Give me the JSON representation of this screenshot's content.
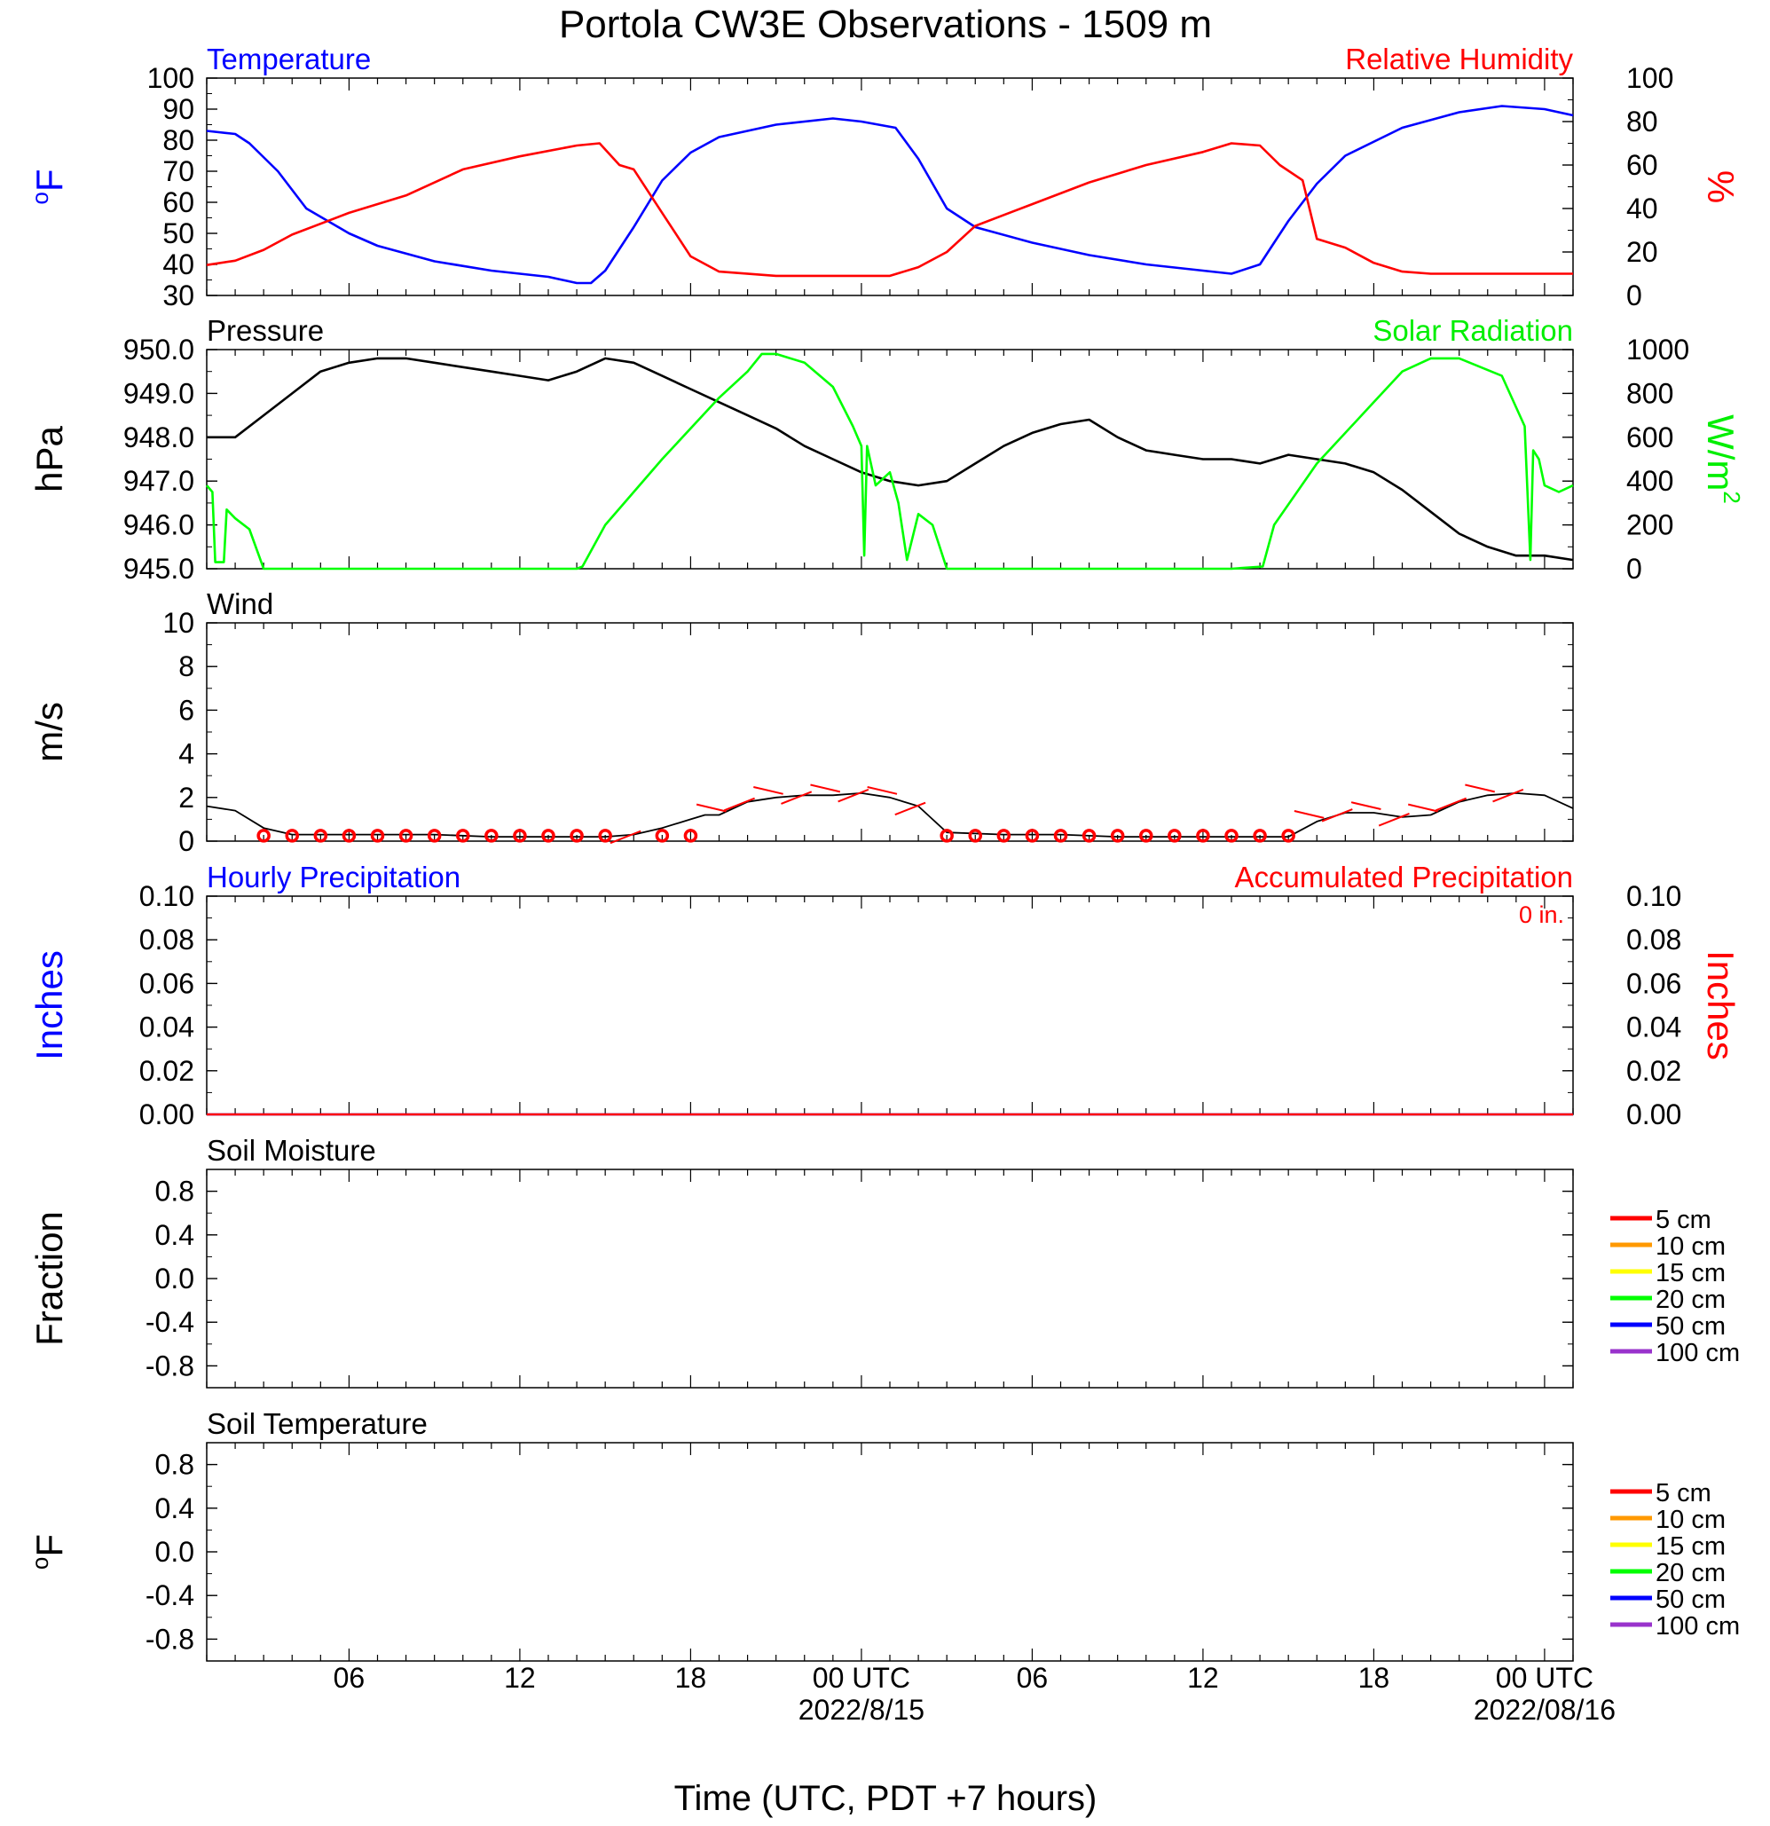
{
  "title": "Portola CW3E Observations - 1509 m",
  "x_axis": {
    "label": "Time (UTC, PDT +7 hours)",
    "range_hours": [
      0,
      48
    ],
    "tick_labels": [
      {
        "hour": 5,
        "label": "06"
      },
      {
        "hour": 11,
        "label": "12"
      },
      {
        "hour": 17,
        "label": "18"
      },
      {
        "hour": 23,
        "label": "00 UTC",
        "date": "2022/8/15"
      },
      {
        "hour": 29,
        "label": "06"
      },
      {
        "hour": 35,
        "label": "12"
      },
      {
        "hour": 41,
        "label": "18"
      },
      {
        "hour": 47,
        "label": "00 UTC",
        "date": "2022/08/16"
      }
    ]
  },
  "chart_data": [
    {
      "type": "line",
      "panel": "temperature_humidity",
      "title_left": "Temperature",
      "title_right": "Relative Humidity",
      "ylabel_left": "oF",
      "ylabel_right": "%",
      "ylim_left": [
        30,
        100
      ],
      "ylim_right": [
        0,
        100
      ],
      "yticks_left": [
        30,
        40,
        50,
        60,
        70,
        80,
        90,
        100
      ],
      "yticks_right": [
        0,
        20,
        40,
        60,
        80,
        100
      ],
      "series": [
        {
          "name": "Temperature",
          "axis": "left",
          "color": "#0000ff",
          "x": [
            0,
            1,
            1.5,
            2.5,
            3.5,
            5,
            6,
            8,
            10,
            12,
            13,
            13.5,
            14,
            15,
            16,
            17,
            18,
            20,
            22,
            23,
            24.2,
            25,
            26,
            27,
            29,
            31,
            33,
            35,
            36,
            37,
            37.5,
            38,
            39,
            40,
            42,
            44,
            45.5,
            47,
            48
          ],
          "y": [
            83,
            82,
            79,
            70,
            58,
            50,
            46,
            41,
            38,
            36,
            34,
            34,
            38,
            52,
            67,
            76,
            81,
            85,
            87,
            86,
            84,
            74,
            58,
            52,
            47,
            43,
            40,
            38,
            37,
            40,
            47,
            54,
            66,
            75,
            84,
            89,
            91,
            90,
            88
          ]
        },
        {
          "name": "Relative Humidity",
          "axis": "right",
          "color": "#ff0000",
          "x": [
            0,
            1,
            2,
            3,
            5,
            7,
            9,
            11,
            13,
            13.8,
            14.5,
            15,
            16,
            17,
            18,
            20,
            22,
            24,
            25,
            26,
            27,
            29,
            31,
            33,
            35,
            36,
            37,
            37.7,
            38.5,
            39,
            40,
            41,
            42,
            43,
            44,
            46,
            48
          ],
          "y": [
            14,
            16,
            21,
            28,
            38,
            46,
            58,
            64,
            69,
            70,
            60,
            58,
            38,
            18,
            11,
            9,
            9,
            9,
            13,
            20,
            32,
            42,
            52,
            60,
            66,
            70,
            69,
            60,
            53,
            26,
            22,
            15,
            11,
            10,
            10,
            10,
            10
          ]
        }
      ]
    },
    {
      "type": "line",
      "panel": "pressure_solar",
      "title_left": "Pressure",
      "title_right": "Solar Radiation",
      "ylabel_left": "hPa",
      "ylabel_right": "W/m2",
      "ylim_left": [
        945.0,
        950.0
      ],
      "ylim_right": [
        0,
        1000
      ],
      "yticks_left": [
        "945.0",
        "946.0",
        "947.0",
        "948.0",
        "949.0",
        "950.0"
      ],
      "yticks_right": [
        0,
        200,
        400,
        600,
        800,
        1000
      ],
      "series": [
        {
          "name": "Pressure",
          "axis": "left",
          "color": "#000000",
          "x": [
            0,
            1,
            2,
            3,
            4,
            5,
            6,
            7,
            8,
            9,
            10,
            11,
            12,
            13,
            14,
            15,
            16,
            17,
            18,
            19,
            20,
            21,
            22,
            23,
            24,
            25,
            26,
            27,
            28,
            29,
            30,
            31,
            32,
            33,
            34,
            35,
            36,
            37,
            38,
            39,
            40,
            41,
            42,
            43,
            44,
            45,
            46,
            47,
            48
          ],
          "y": [
            948.0,
            948.0,
            948.5,
            949.0,
            949.5,
            949.7,
            949.8,
            949.8,
            949.7,
            949.6,
            949.5,
            949.4,
            949.3,
            949.5,
            949.8,
            949.7,
            949.4,
            949.1,
            948.8,
            948.5,
            948.2,
            947.8,
            947.5,
            947.2,
            947.0,
            946.9,
            947.0,
            947.4,
            947.8,
            948.1,
            948.3,
            948.4,
            948.0,
            947.7,
            947.6,
            947.5,
            947.5,
            947.4,
            947.6,
            947.5,
            947.4,
            947.2,
            946.8,
            946.3,
            945.8,
            945.5,
            945.3,
            945.3,
            945.2
          ]
        },
        {
          "name": "Solar Radiation",
          "axis": "right",
          "color": "#00ff00",
          "x": [
            0,
            0.2,
            0.3,
            0.6,
            0.7,
            1.0,
            1.5,
            2.0,
            3,
            8,
            13,
            13.2,
            14,
            16,
            18,
            19,
            19.5,
            20,
            21,
            22,
            22.7,
            23.0,
            23.1,
            23.2,
            23.5,
            24.0,
            24.3,
            24.6,
            25.0,
            25.5,
            26,
            30,
            36,
            37.1,
            37.5,
            39,
            41,
            42,
            43,
            44,
            45.5,
            46.3,
            46.5,
            46.6,
            46.8,
            47.0,
            47.5,
            48
          ],
          "y": [
            380,
            350,
            30,
            30,
            270,
            230,
            180,
            0,
            0,
            0,
            0,
            10,
            200,
            500,
            780,
            900,
            980,
            980,
            940,
            830,
            650,
            560,
            60,
            560,
            380,
            440,
            300,
            40,
            250,
            200,
            0,
            0,
            0,
            10,
            200,
            480,
            760,
            900,
            960,
            960,
            880,
            650,
            40,
            540,
            500,
            380,
            350,
            380
          ]
        }
      ]
    },
    {
      "type": "line",
      "panel": "wind",
      "title_left": "Wind",
      "ylabel": "m/s",
      "ylim": [
        0,
        10
      ],
      "yticks": [
        0,
        2,
        4,
        6,
        8,
        10
      ],
      "series": [
        {
          "name": "Wind",
          "color": "#000000",
          "x": [
            0,
            1,
            2,
            3,
            5,
            8,
            10,
            12,
            14,
            15,
            16,
            17,
            17.5,
            18,
            19,
            20,
            21,
            22,
            23,
            24,
            25,
            25.5,
            26,
            28,
            30,
            32,
            34,
            36,
            38,
            39,
            40,
            41,
            42,
            43,
            44,
            45,
            46,
            47,
            48
          ],
          "y": [
            1.6,
            1.4,
            0.6,
            0.3,
            0.3,
            0.3,
            0.2,
            0.2,
            0.2,
            0.3,
            0.6,
            1.0,
            1.2,
            1.2,
            1.8,
            2.0,
            2.1,
            2.1,
            2.2,
            2.0,
            1.6,
            1.0,
            0.4,
            0.3,
            0.3,
            0.2,
            0.2,
            0.2,
            0.2,
            0.9,
            1.3,
            1.3,
            1.1,
            1.2,
            1.8,
            2.1,
            2.2,
            2.1,
            1.5
          ]
        }
      ],
      "calm_markers_hours": [
        2,
        3,
        4,
        5,
        6,
        7,
        8,
        9,
        10,
        11,
        12,
        13,
        14,
        16,
        17,
        26,
        27,
        28,
        29,
        30,
        31,
        32,
        33,
        34,
        35,
        36,
        37,
        38
      ],
      "barb_hours": [
        15,
        18,
        19,
        20,
        21,
        22,
        23,
        24,
        25,
        39,
        40,
        41,
        42,
        43,
        44,
        45,
        46
      ]
    },
    {
      "type": "line",
      "panel": "precipitation",
      "title_left": "Hourly Precipitation",
      "title_right": "Accumulated Precipitation",
      "annotation": "0 in.",
      "ylabel_left": "Inches",
      "ylabel_right": "Inches",
      "ylim": [
        0,
        0.1
      ],
      "yticks": [
        "0.00",
        "0.02",
        "0.04",
        "0.06",
        "0.08",
        "0.10"
      ],
      "series": [
        {
          "name": "Hourly Precipitation",
          "color": "#0000ff",
          "x": [
            0,
            48
          ],
          "y": [
            0,
            0
          ]
        },
        {
          "name": "Accumulated Precipitation",
          "color": "#ff0000",
          "x": [
            0,
            48
          ],
          "y": [
            0,
            0
          ]
        }
      ]
    },
    {
      "type": "line",
      "panel": "soil_moisture",
      "title_left": "Soil Moisture",
      "ylabel": "Fraction",
      "ylim": [
        -1,
        1
      ],
      "yticks": [
        "-0.8",
        "-0.4",
        "0.0",
        "0.4",
        "0.8"
      ],
      "legend": [
        "5 cm",
        "10 cm",
        "15 cm",
        "20 cm",
        "50 cm",
        "100 cm"
      ],
      "legend_placement": "right",
      "series": []
    },
    {
      "type": "line",
      "panel": "soil_temperature",
      "title_left": "Soil Temperature",
      "ylabel": "oF",
      "ylim": [
        -1,
        1
      ],
      "yticks": [
        "-0.8",
        "-0.4",
        "0.0",
        "0.4",
        "0.8"
      ],
      "legend": [
        "5 cm",
        "10 cm",
        "15 cm",
        "20 cm",
        "50 cm",
        "100 cm"
      ],
      "legend_placement": "right",
      "series": []
    }
  ],
  "legend_colors": [
    "#ff0000",
    "#ff9900",
    "#ffff00",
    "#00ff00",
    "#0000ff",
    "#9933cc"
  ]
}
